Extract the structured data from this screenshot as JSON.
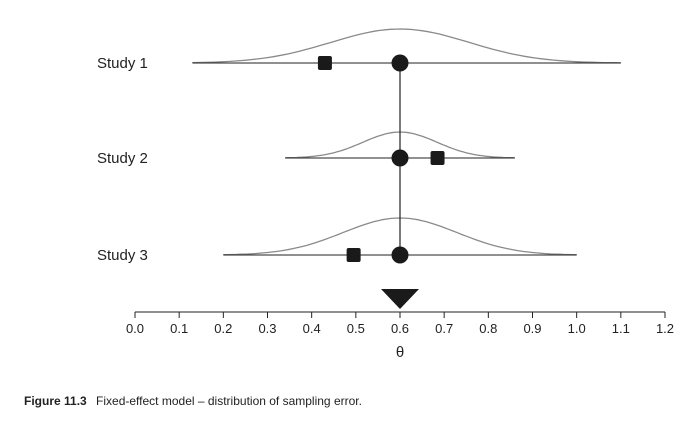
{
  "chart_data": {
    "type": "forest",
    "xlabel": "θ",
    "xlim": [
      0.0,
      1.2
    ],
    "xticks": [
      "0.0",
      "0.1",
      "0.2",
      "0.3",
      "0.4",
      "0.5",
      "0.6",
      "0.7",
      "0.8",
      "0.9",
      "1.0",
      "1.1",
      "1.2"
    ],
    "common_effect": 0.6,
    "summary_marker": "triangle-down",
    "studies": [
      {
        "label": "Study 1",
        "observed": 0.43,
        "true_effect": 0.6,
        "range": [
          0.13,
          1.1
        ]
      },
      {
        "label": "Study 2",
        "observed": 0.685,
        "true_effect": 0.6,
        "range": [
          0.34,
          0.86
        ]
      },
      {
        "label": "Study 3",
        "observed": 0.495,
        "true_effect": 0.6,
        "range": [
          0.2,
          1.0
        ]
      }
    ],
    "colors": {
      "curve": "#8a8a8a",
      "line": "#222222",
      "marker": "#1a1a1a"
    }
  },
  "caption": {
    "label": "Figure 11.3",
    "text": "Fixed-effect model – distribution of sampling error."
  }
}
